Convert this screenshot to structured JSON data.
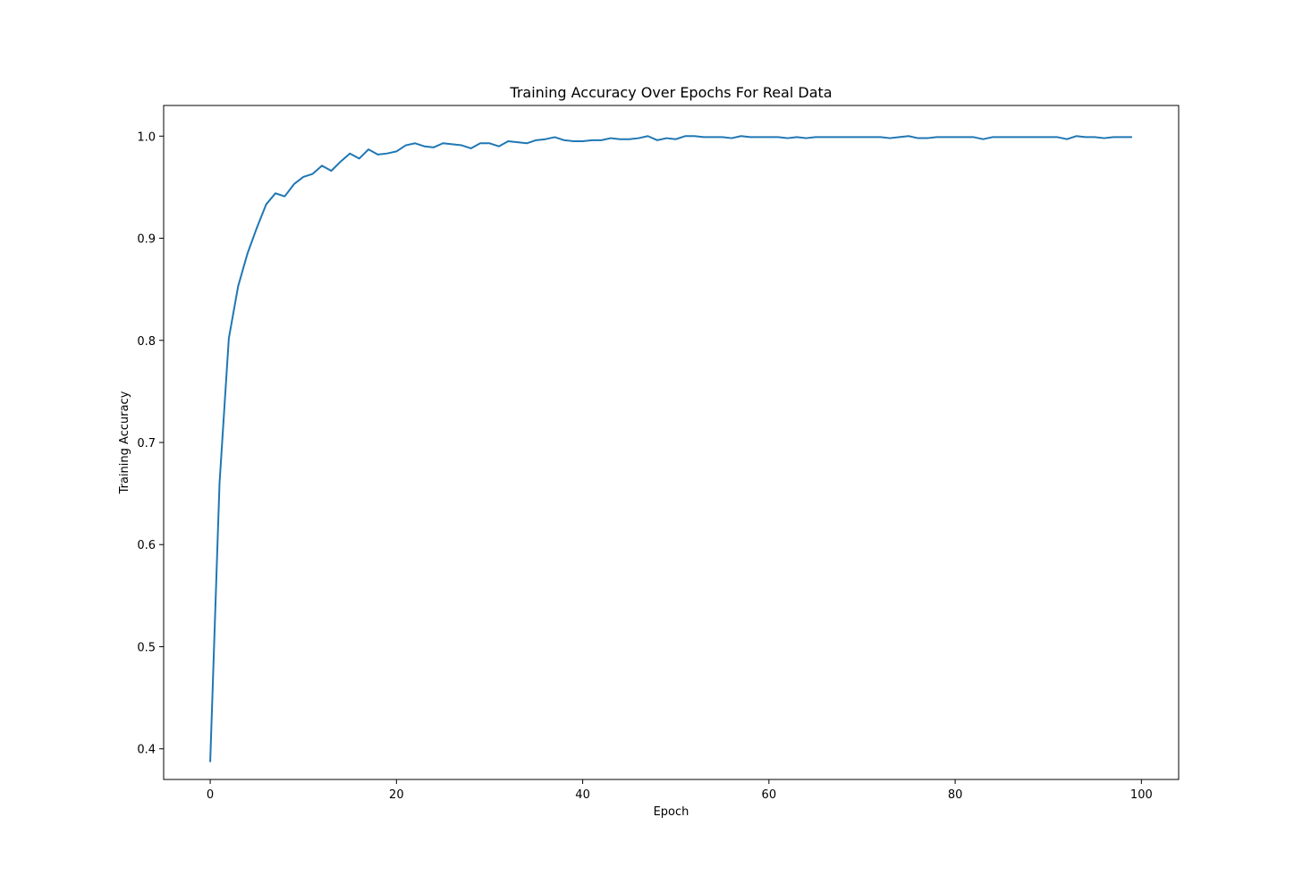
{
  "chart_data": {
    "type": "line",
    "title": "Training Accuracy Over Epochs For Real Data",
    "xlabel": "Epoch",
    "ylabel": "Training Accuracy",
    "xlim": [
      -5,
      104
    ],
    "ylim": [
      0.37,
      1.03
    ],
    "xticks": [
      0,
      20,
      40,
      60,
      80,
      100
    ],
    "yticks": [
      0.4,
      0.5,
      0.6,
      0.7,
      0.8,
      0.9,
      1.0
    ],
    "ytick_labels": [
      "0.4",
      "0.5",
      "0.6",
      "0.7",
      "0.8",
      "0.9",
      "1.0"
    ],
    "grid": false,
    "line_color": "#1f77b4",
    "series": [
      {
        "x": [
          0,
          1,
          2,
          3,
          4,
          5,
          6,
          7,
          8,
          9,
          10,
          11,
          12,
          13,
          14,
          15,
          16,
          17,
          18,
          19,
          20,
          21,
          22,
          23,
          24,
          25,
          26,
          27,
          28,
          29,
          30,
          31,
          32,
          33,
          34,
          35,
          36,
          37,
          38,
          39,
          40,
          41,
          42,
          43,
          44,
          45,
          46,
          47,
          48,
          49,
          50,
          51,
          52,
          53,
          54,
          55,
          56,
          57,
          58,
          59,
          60,
          61,
          62,
          63,
          64,
          65,
          66,
          67,
          68,
          69,
          70,
          71,
          72,
          73,
          74,
          75,
          76,
          77,
          78,
          79,
          80,
          81,
          82,
          83,
          84,
          85,
          86,
          87,
          88,
          89,
          90,
          91,
          92,
          93,
          94,
          95,
          96,
          97,
          98,
          99
        ],
        "values": [
          0.387,
          0.66,
          0.802,
          0.853,
          0.885,
          0.91,
          0.933,
          0.944,
          0.941,
          0.953,
          0.96,
          0.963,
          0.971,
          0.966,
          0.975,
          0.983,
          0.978,
          0.987,
          0.982,
          0.983,
          0.985,
          0.991,
          0.993,
          0.99,
          0.989,
          0.993,
          0.992,
          0.991,
          0.988,
          0.993,
          0.993,
          0.99,
          0.995,
          0.994,
          0.993,
          0.996,
          0.997,
          0.999,
          0.996,
          0.995,
          0.995,
          0.996,
          0.996,
          0.998,
          0.997,
          0.997,
          0.998,
          1.0,
          0.996,
          0.998,
          0.997,
          1.0,
          1.0,
          0.999,
          0.999,
          0.999,
          0.998,
          1.0,
          0.999,
          0.999,
          0.999,
          0.999,
          0.998,
          0.999,
          0.998,
          0.999,
          0.999,
          0.999,
          0.999,
          0.999,
          0.999,
          0.999,
          0.999,
          0.998,
          0.999,
          1.0,
          0.998,
          0.998,
          0.999,
          0.999,
          0.999,
          0.999,
          0.999,
          0.997,
          0.999,
          0.999,
          0.999,
          0.999,
          0.999,
          0.999,
          0.999,
          0.999,
          0.997,
          1.0,
          0.999,
          0.999,
          0.998,
          0.999,
          0.999,
          0.999
        ]
      }
    ]
  }
}
